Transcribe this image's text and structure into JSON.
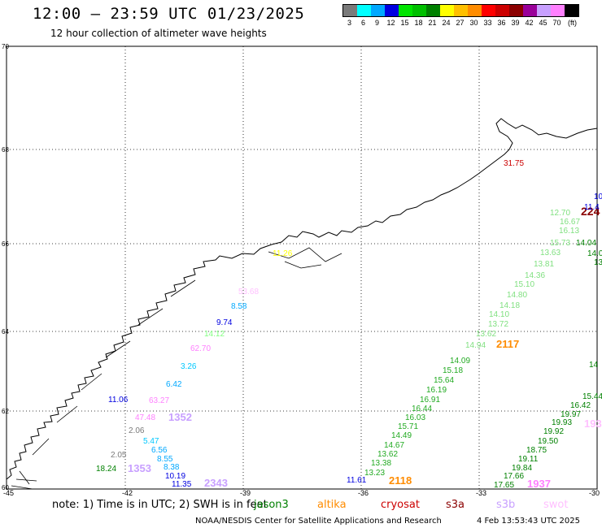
{
  "title": "12:00 – 23:59 UTC 01/23/2025",
  "subtitle": "12 hour collection of altimeter wave heights",
  "legend": {
    "colors": [
      "#7a7a7a",
      "#00ffff",
      "#00a8ff",
      "#0000e0",
      "#00e400",
      "#00c000",
      "#008000",
      "#ffff00",
      "#ffc000",
      "#ff8c00",
      "#ff0000",
      "#cc0000",
      "#8b0000",
      "#990099",
      "#c8a0ff",
      "#ff80ff",
      "#000000"
    ],
    "labels": [
      "3",
      "6",
      "9",
      "12",
      "15",
      "18",
      "21",
      "24",
      "27",
      "30",
      "33",
      "36",
      "39",
      "42",
      "45",
      "70",
      "(ft)"
    ]
  },
  "axes": {
    "lat_labels": [
      "70",
      "68",
      "66",
      "64",
      "62",
      "60"
    ],
    "lon_labels": [
      "-45",
      "-42",
      "-39",
      "-36",
      "-33",
      "-30"
    ]
  },
  "tracks": [
    {
      "color": "#ffc0ff",
      "labels": [
        "53.68"
      ]
    },
    {
      "color": "#00a8ff",
      "labels": [
        "8.58"
      ]
    },
    {
      "color": "#0000e0",
      "labels": [
        "9.74"
      ]
    },
    {
      "color": "#80ff80",
      "labels": [
        "14.12"
      ]
    },
    {
      "color": "#ff80ff",
      "labels": [
        "62.70"
      ]
    },
    {
      "color": "#00c8ff",
      "labels": [
        "3.26"
      ]
    },
    {
      "color": "#00a8ff",
      "labels": [
        "6.42"
      ]
    },
    {
      "color": "#0000e0",
      "labels": [
        "11.06"
      ]
    },
    {
      "color": "#ff80ff",
      "labels": [
        "63.27"
      ]
    },
    {
      "color": "#ff80ff",
      "labels": [
        "47.48"
      ]
    },
    {
      "color": "#c8a0ff",
      "labels": [
        "1352"
      ]
    },
    {
      "color": "#7a7a7a",
      "labels": [
        "2.06"
      ]
    },
    {
      "color": "#00c8ff",
      "labels": [
        "5.47"
      ]
    },
    {
      "color": "#00a8ff",
      "labels": [
        "6.56"
      ]
    },
    {
      "color": "#00a8ff",
      "labels": [
        "8.55"
      ]
    },
    {
      "color": "#7a7a7a",
      "labels": [
        "2.05"
      ]
    },
    {
      "color": "#00a8ff",
      "labels": [
        "8.38"
      ]
    },
    {
      "color": "#008000",
      "labels": [
        "18.24"
      ]
    },
    {
      "color": "#c8a0ff",
      "labels": [
        "1353"
      ]
    },
    {
      "color": "#0000e0",
      "labels": [
        "10.19"
      ]
    },
    {
      "color": "#0000e0",
      "labels": [
        "11.35"
      ]
    },
    {
      "color": "#c8a0ff",
      "labels": [
        "2343"
      ]
    },
    {
      "color": "#ff8c00",
      "labels": [
        "2117"
      ]
    },
    {
      "color": "#ff8c00",
      "labels": [
        "2118"
      ]
    },
    {
      "color": "#0000e0",
      "labels": [
        "11.61"
      ]
    },
    {
      "color": "#ff80ff",
      "labels": [
        "1937"
      ]
    },
    {
      "color": "#cc0000",
      "labels": [
        "31.75"
      ]
    },
    {
      "color": "#ffc0ff",
      "labels": [
        "193"
      ]
    },
    {
      "color": "#8b0000",
      "labels": [
        "224"
      ]
    },
    {
      "color": "#0000e0",
      "labels": [
        "10"
      ]
    },
    {
      "color": "#0000e0",
      "labels": [
        "11.4"
      ]
    },
    {
      "color": "#ffff00",
      "labels": [
        "11.26"
      ]
    }
  ],
  "track_a": [
    "14.09",
    "15.18",
    "15.64",
    "16.19",
    "16.91",
    "16.44",
    "16.03",
    "15.71",
    "14.49",
    "14.67",
    "13.62",
    "13.38",
    "13.23"
  ],
  "track_b": [
    "12.70",
    "16.67",
    "16.13",
    "15.73",
    "13.63",
    "13.81",
    "14.36",
    "15.10",
    "14.80",
    "14.18",
    "14.10",
    "13.72",
    "13.62",
    "14.94"
  ],
  "track_c": [
    "14.04",
    "14.0",
    "13",
    "14",
    "15.44",
    "16.42",
    "19.97",
    "19.93",
    "19.92",
    "19.50",
    "18.75",
    "19.11",
    "19.84",
    "17.66",
    "17.65"
  ],
  "track_a_color": "#22aa22",
  "track_b_color": "#80e080",
  "track_c_color": "#008000",
  "note": "note:  1) Time is in UTC;  2) SWH is in feet",
  "satellites": [
    {
      "name": "jason3",
      "color": "#008000"
    },
    {
      "name": "altika",
      "color": "#ff8c00"
    },
    {
      "name": "cryosat",
      "color": "#cc0000"
    },
    {
      "name": "s3a",
      "color": "#8b0000"
    },
    {
      "name": "s3b",
      "color": "#c8a0ff"
    },
    {
      "name": "swot",
      "color": "#ffc0ff"
    }
  ],
  "credit": "NOAA/NESDIS Center for Satellite Applications and Research",
  "generated": "4 Feb 13:53:43 UTC 2025"
}
